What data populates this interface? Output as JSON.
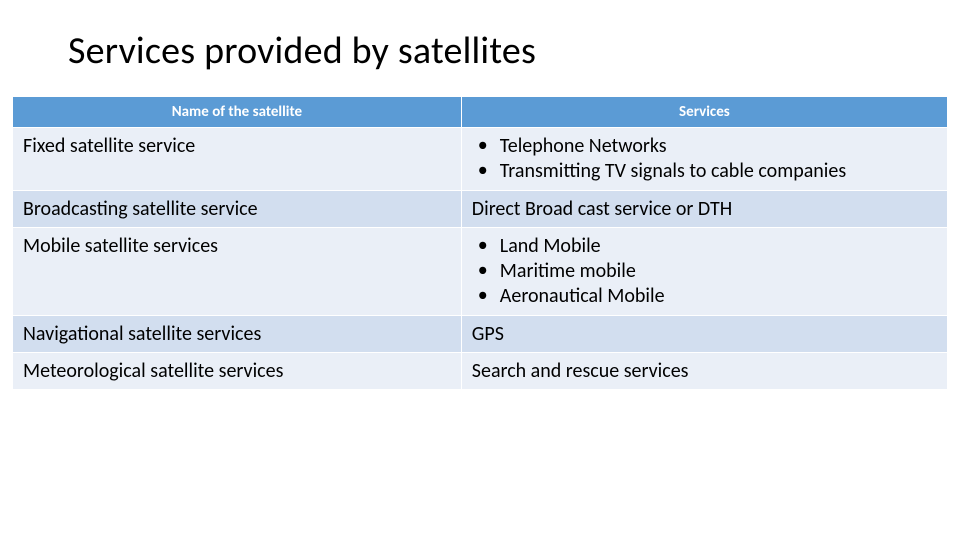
{
  "title": "Services provided by satellites",
  "table": {
    "columns": [
      "Name of the satellite",
      "Services"
    ],
    "header_bg": "#5b9bd5",
    "header_fg": "#ffffff",
    "band_colors": [
      "#eaeff7",
      "#d2deef"
    ],
    "col_widths_pct": [
      48,
      52
    ],
    "header_fontsize": 15,
    "cell_fontsize": 20,
    "rows": [
      {
        "name": "Fixed satellite service",
        "services_type": "list",
        "services": [
          "Telephone Networks",
          "Transmitting TV signals to cable companies"
        ]
      },
      {
        "name": "Broadcasting satellite service",
        "services_type": "text",
        "services": "Direct Broad cast service or DTH"
      },
      {
        "name": "Mobile satellite services",
        "services_type": "list",
        "services": [
          "Land Mobile",
          "Maritime mobile",
          "Aeronautical Mobile"
        ]
      },
      {
        "name": "Navigational satellite services",
        "services_type": "text",
        "services": "GPS"
      },
      {
        "name": "Meteorological satellite services",
        "services_type": "text",
        "services": "Search and rescue services"
      }
    ]
  },
  "background_color": "#ffffff",
  "title_color": "#000000",
  "title_fontsize": 38
}
